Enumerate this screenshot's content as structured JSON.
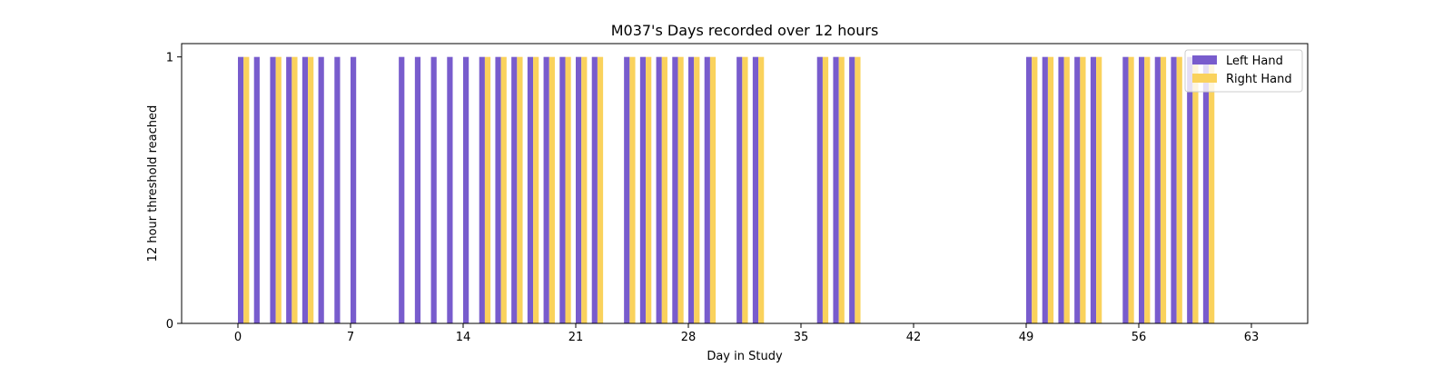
{
  "chart_data": {
    "type": "bar",
    "title": "M037's Days recorded over 12 hours",
    "xlabel": "Day in Study",
    "ylabel": "12 hour threshold reached",
    "xlim": [
      -3.5,
      66.5
    ],
    "ylim": [
      0,
      1.05
    ],
    "xticks": [
      0,
      7,
      14,
      21,
      28,
      35,
      42,
      49,
      56,
      63
    ],
    "yticks": [
      0,
      1
    ],
    "grid": false,
    "legend_position": "top-right",
    "series": [
      {
        "name": "Left Hand",
        "color": "#785ccd",
        "x": [
          0,
          1,
          2,
          3,
          4,
          5,
          6,
          7,
          10,
          11,
          12,
          13,
          14,
          15,
          16,
          17,
          18,
          19,
          20,
          21,
          22,
          24,
          25,
          26,
          27,
          28,
          29,
          31,
          32,
          36,
          37,
          38,
          49,
          50,
          51,
          52,
          53,
          55,
          56,
          57,
          58,
          59,
          60
        ],
        "values": [
          1,
          1,
          1,
          1,
          1,
          1,
          1,
          1,
          1,
          1,
          1,
          1,
          1,
          1,
          1,
          1,
          1,
          1,
          1,
          1,
          1,
          1,
          1,
          1,
          1,
          1,
          1,
          1,
          1,
          1,
          1,
          1,
          1,
          1,
          1,
          1,
          1,
          1,
          1,
          1,
          1,
          1,
          1
        ]
      },
      {
        "name": "Right Hand",
        "color": "#fad25c",
        "x": [
          0,
          2,
          3,
          4,
          15,
          16,
          17,
          18,
          19,
          20,
          21,
          22,
          24,
          25,
          26,
          27,
          28,
          29,
          31,
          32,
          36,
          37,
          38,
          49,
          50,
          51,
          52,
          53,
          55,
          56,
          57,
          58,
          59,
          60
        ],
        "values": [
          1,
          1,
          1,
          1,
          1,
          1,
          1,
          1,
          1,
          1,
          1,
          1,
          1,
          1,
          1,
          1,
          1,
          1,
          1,
          1,
          1,
          1,
          1,
          1,
          1,
          1,
          1,
          1,
          1,
          1,
          1,
          1,
          1,
          1
        ]
      }
    ]
  }
}
